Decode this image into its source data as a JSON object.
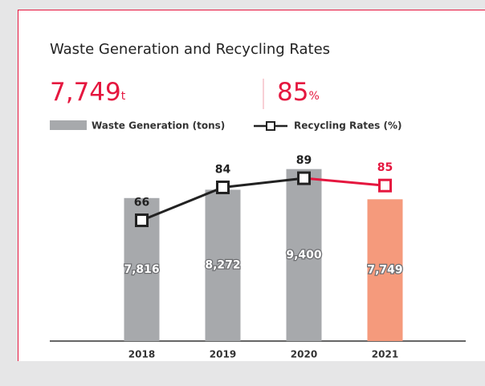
{
  "chart_data": {
    "type": "bar",
    "title": "Waste Generation and Recycling Rates",
    "headline": {
      "value": "7,749",
      "unit": "t",
      "rate": "85",
      "rate_unit": "%"
    },
    "categories": [
      "2018",
      "2019",
      "2020",
      "2021"
    ],
    "series": [
      {
        "name": "Waste Generation (tons)",
        "type": "bar",
        "color": "#a7a9ac",
        "colors": [
          "#a7a9ac",
          "#a7a9ac",
          "#a7a9ac",
          "#f59a7c"
        ],
        "values": [
          7816,
          8272,
          9400,
          7749
        ],
        "value_labels": [
          "7,816",
          "8,272",
          "9,400",
          "7,749"
        ]
      },
      {
        "name": "Recycling Rates (%)",
        "type": "line",
        "axis": "y2",
        "color": "#222222",
        "colors": [
          "#222222",
          "#222222",
          "#222222",
          "#e5173f"
        ],
        "values": [
          66,
          84,
          89,
          85
        ]
      }
    ],
    "ylim": [
      0,
      10000
    ],
    "y2lim": [
      0,
      100
    ]
  }
}
